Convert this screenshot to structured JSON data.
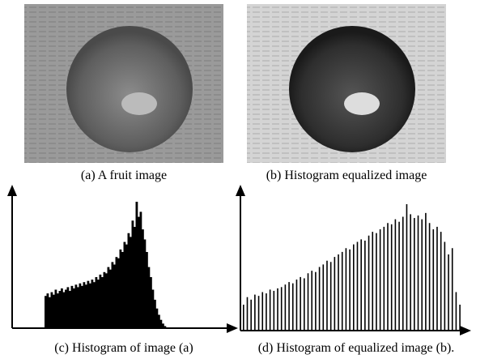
{
  "figure": {
    "panels": [
      {
        "caption": "(a) A fruit image"
      },
      {
        "caption": "(b) Histogram equalized image"
      },
      {
        "caption": "(c) Histogram of image (a)",
        "values": [
          25,
          27,
          24,
          28,
          26,
          30,
          27,
          29,
          31,
          28,
          30,
          32,
          29,
          33,
          31,
          34,
          32,
          35,
          33,
          36,
          34,
          37,
          35,
          38,
          36,
          40,
          38,
          42,
          40,
          44,
          43,
          48,
          46,
          52,
          50,
          56,
          55,
          62,
          60,
          68,
          66,
          75,
          72,
          85,
          80,
          100,
          88,
          92,
          78,
          70,
          60,
          48,
          40,
          30,
          22,
          15,
          10,
          6,
          3,
          1
        ]
      },
      {
        "caption": "(d) Histogram of equalized image (b).",
        "values": [
          20,
          26,
          24,
          28,
          27,
          30,
          29,
          32,
          31,
          33,
          34,
          36,
          38,
          37,
          40,
          42,
          41,
          45,
          47,
          46,
          50,
          52,
          55,
          54,
          58,
          60,
          62,
          65,
          64,
          68,
          70,
          72,
          71,
          75,
          78,
          77,
          80,
          82,
          85,
          84,
          88,
          86,
          90,
          100,
          92,
          89,
          91,
          88,
          93,
          85,
          80,
          82,
          78,
          70,
          60,
          65,
          30,
          20
        ]
      }
    ]
  }
}
